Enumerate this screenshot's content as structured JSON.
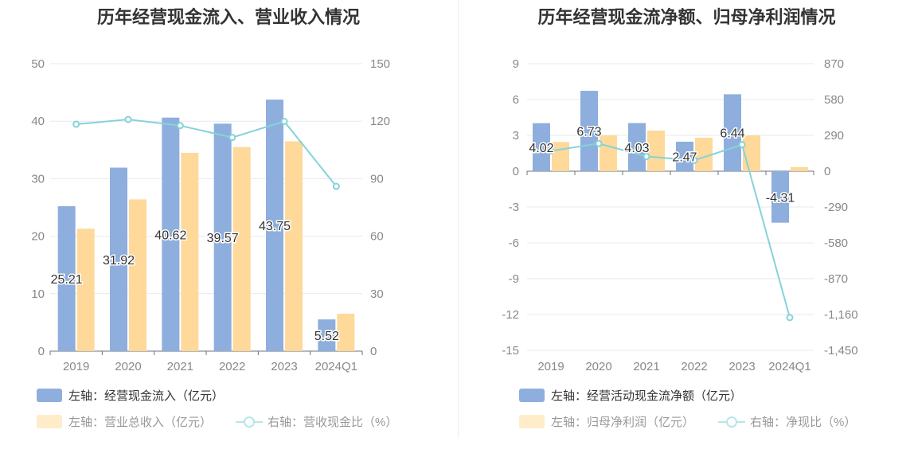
{
  "colors": {
    "blue": "#8eaedd",
    "orange": "#fed99a",
    "line": "#85d3d8",
    "grid": "#e6e9f2",
    "axis_text": "#888888"
  },
  "chart_data": [
    {
      "type": "bar",
      "title": "历年经营现金流入、营业收入情况",
      "categories": [
        "2019",
        "2020",
        "2021",
        "2022",
        "2023",
        "2024Q1"
      ],
      "left_axis": {
        "ylim": [
          0,
          50
        ],
        "ticks": [
          50,
          40,
          30,
          20,
          10,
          0
        ]
      },
      "right_axis": {
        "ylim": [
          0,
          150
        ],
        "ticks": [
          150,
          120,
          90,
          60,
          30,
          0
        ]
      },
      "grid": true,
      "series": [
        {
          "name": "左轴：经营现金流入（亿元）",
          "axis": "left",
          "kind": "bar",
          "color": "#8eaedd",
          "values": [
            25.21,
            31.92,
            40.62,
            39.57,
            43.75,
            5.52
          ],
          "labels": [
            "25.21",
            "31.92",
            "40.62",
            "39.57",
            "43.75",
            "5.52"
          ]
        },
        {
          "name": "左轴：营业总收入（亿元）",
          "axis": "left",
          "kind": "bar",
          "color": "#fed99a",
          "values": [
            21.3,
            26.4,
            34.5,
            35.5,
            36.5,
            6.5
          ]
        },
        {
          "name": "右轴：营收现金比（%）",
          "axis": "right",
          "kind": "line",
          "color": "#85d3d8",
          "values": [
            118.4,
            120.9,
            117.7,
            111.5,
            119.9,
            86.0
          ]
        }
      ],
      "legend_position": "bottom-left"
    },
    {
      "type": "bar",
      "title": "历年经营现金流净额、归母净利润情况",
      "categories": [
        "2019",
        "2020",
        "2021",
        "2022",
        "2023",
        "2024Q1"
      ],
      "left_axis": {
        "ylim": [
          -15,
          9
        ],
        "ticks": [
          9,
          6,
          3,
          0,
          -3,
          -6,
          -9,
          -12,
          -15
        ]
      },
      "right_axis": {
        "ylim": [
          -1450,
          870
        ],
        "ticks": [
          "870",
          "580",
          "290",
          "0",
          "-290",
          "-580",
          "-870",
          "-1,160",
          "-1,450"
        ]
      },
      "grid": true,
      "series": [
        {
          "name": "左轴：经营活动现金流净额（亿元）",
          "axis": "left",
          "kind": "bar",
          "color": "#8eaedd",
          "values": [
            4.02,
            6.73,
            4.03,
            2.47,
            6.44,
            -4.31
          ],
          "labels": [
            "4.02",
            "6.73",
            "4.03",
            "2.47",
            "6.44",
            "-4.31"
          ]
        },
        {
          "name": "左轴：归母净利润（亿元）",
          "axis": "left",
          "kind": "bar",
          "color": "#fed99a",
          "values": [
            2.45,
            3.0,
            3.4,
            2.8,
            3.0,
            0.35
          ]
        },
        {
          "name": "右轴：净现比（%）",
          "axis": "right",
          "kind": "line",
          "color": "#85d3d8",
          "values": [
            164,
            224,
            119,
            88,
            215,
            -1185
          ]
        }
      ],
      "legend_position": "bottom-left"
    }
  ]
}
